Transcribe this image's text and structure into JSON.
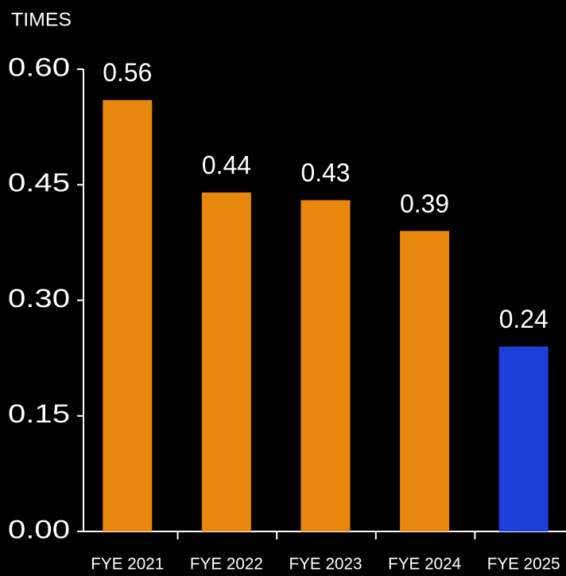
{
  "chart_data": {
    "type": "bar",
    "y_axis_label": "TIMES",
    "categories": [
      "FYE 2021",
      "FYE 2022",
      "FYE 2023",
      "FYE 2024",
      "FYE 2025"
    ],
    "values": [
      0.56,
      0.44,
      0.43,
      0.39,
      0.24
    ],
    "colors": [
      "#e8870e",
      "#e8870e",
      "#e8870e",
      "#e8870e",
      "#1b3fd8"
    ],
    "ylim": [
      0,
      0.6
    ],
    "yticks": [
      {
        "value": 0,
        "label": "0.00"
      },
      {
        "value": 0.15,
        "label": "0.15"
      },
      {
        "value": 0.3,
        "label": "0.30"
      },
      {
        "value": 0.45,
        "label": "0.45"
      },
      {
        "value": 0.6,
        "label": "0.60"
      }
    ]
  }
}
